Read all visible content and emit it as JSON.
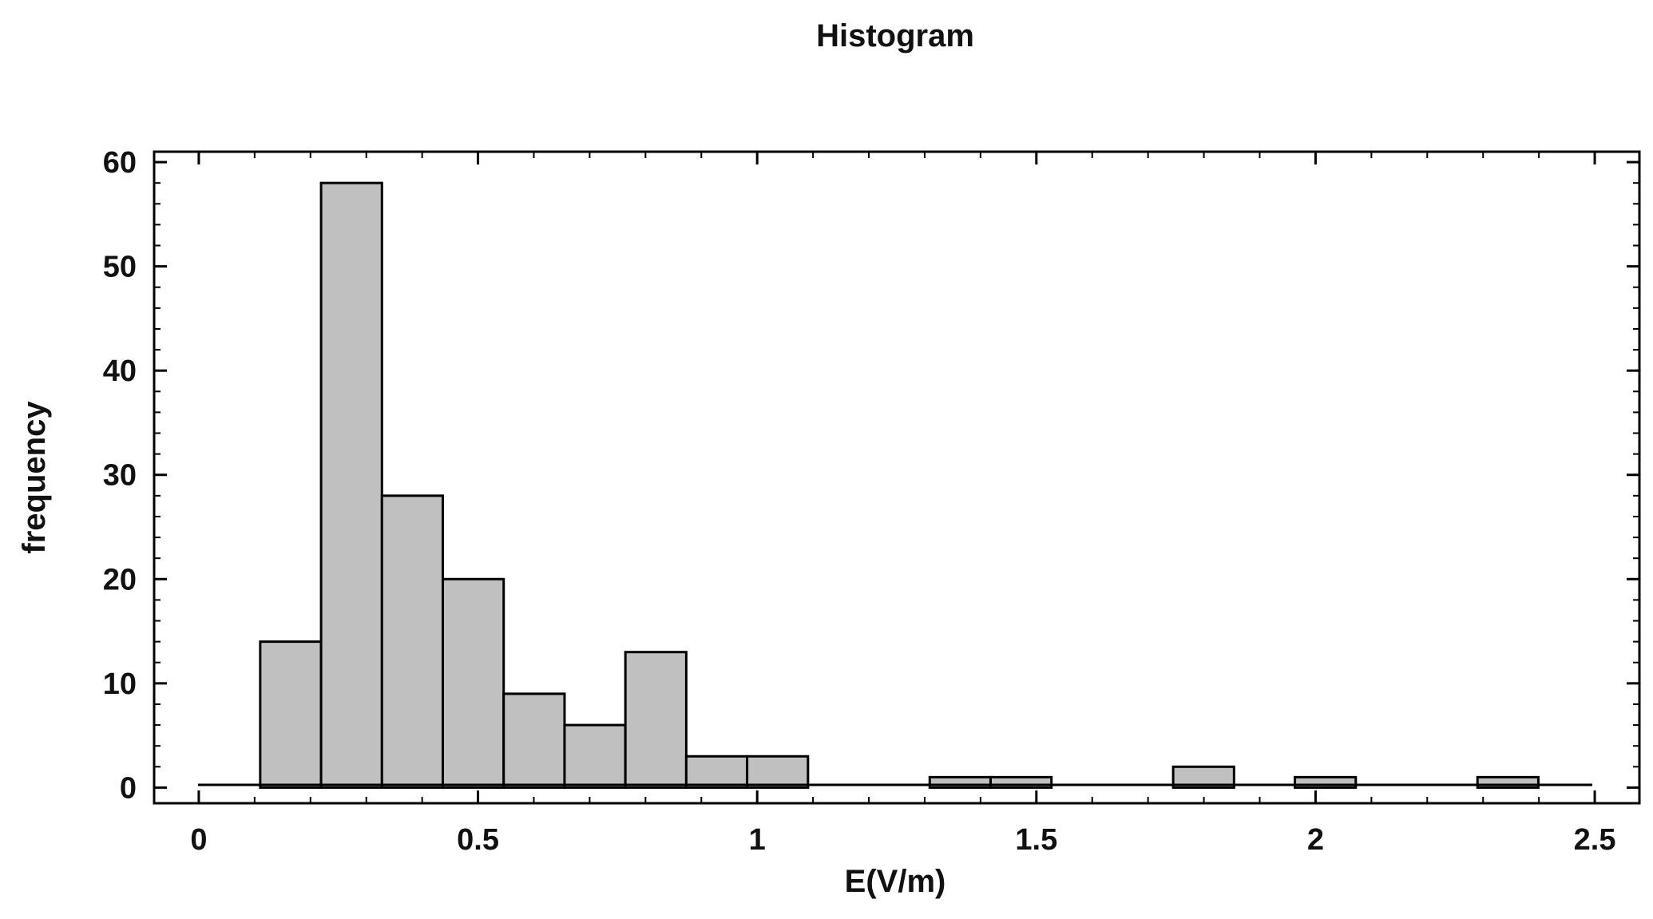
{
  "chart_data": {
    "type": "bar",
    "title": "Histogram",
    "xlabel": "E(V/m)",
    "ylabel": "frequency",
    "xlim": [
      -0.08,
      2.58
    ],
    "ylim": [
      -1.5,
      61
    ],
    "x_ticks": [
      0,
      0.5,
      1,
      1.5,
      2,
      2.5
    ],
    "x_tick_labels": [
      "0",
      "0.5",
      "1",
      "1.5",
      "2",
      "2.5"
    ],
    "y_ticks": [
      0,
      10,
      20,
      30,
      40,
      50,
      60
    ],
    "y_tick_labels": [
      "0",
      "10",
      "20",
      "30",
      "40",
      "50",
      "60"
    ],
    "x_minor_step": 0.1,
    "y_minor_step": 2,
    "bin_width": 0.109,
    "bin_starts": [
      0.11,
      0.219,
      0.328,
      0.437,
      0.546,
      0.655,
      0.764,
      0.873,
      0.982,
      1.091,
      1.2,
      1.309,
      1.418,
      1.527,
      1.636,
      1.745,
      1.854,
      1.963,
      2.072,
      2.181,
      2.29
    ],
    "values": [
      14,
      58,
      28,
      20,
      9,
      6,
      13,
      3,
      3,
      0,
      0,
      1,
      1,
      0,
      0,
      2,
      0,
      1,
      0,
      0,
      1
    ],
    "colors": {
      "bar_fill": "#c0c0c0",
      "bar_stroke": "#000000",
      "frame": "#000000",
      "background": "#ffffff"
    },
    "grid": false,
    "legend": "none"
  }
}
